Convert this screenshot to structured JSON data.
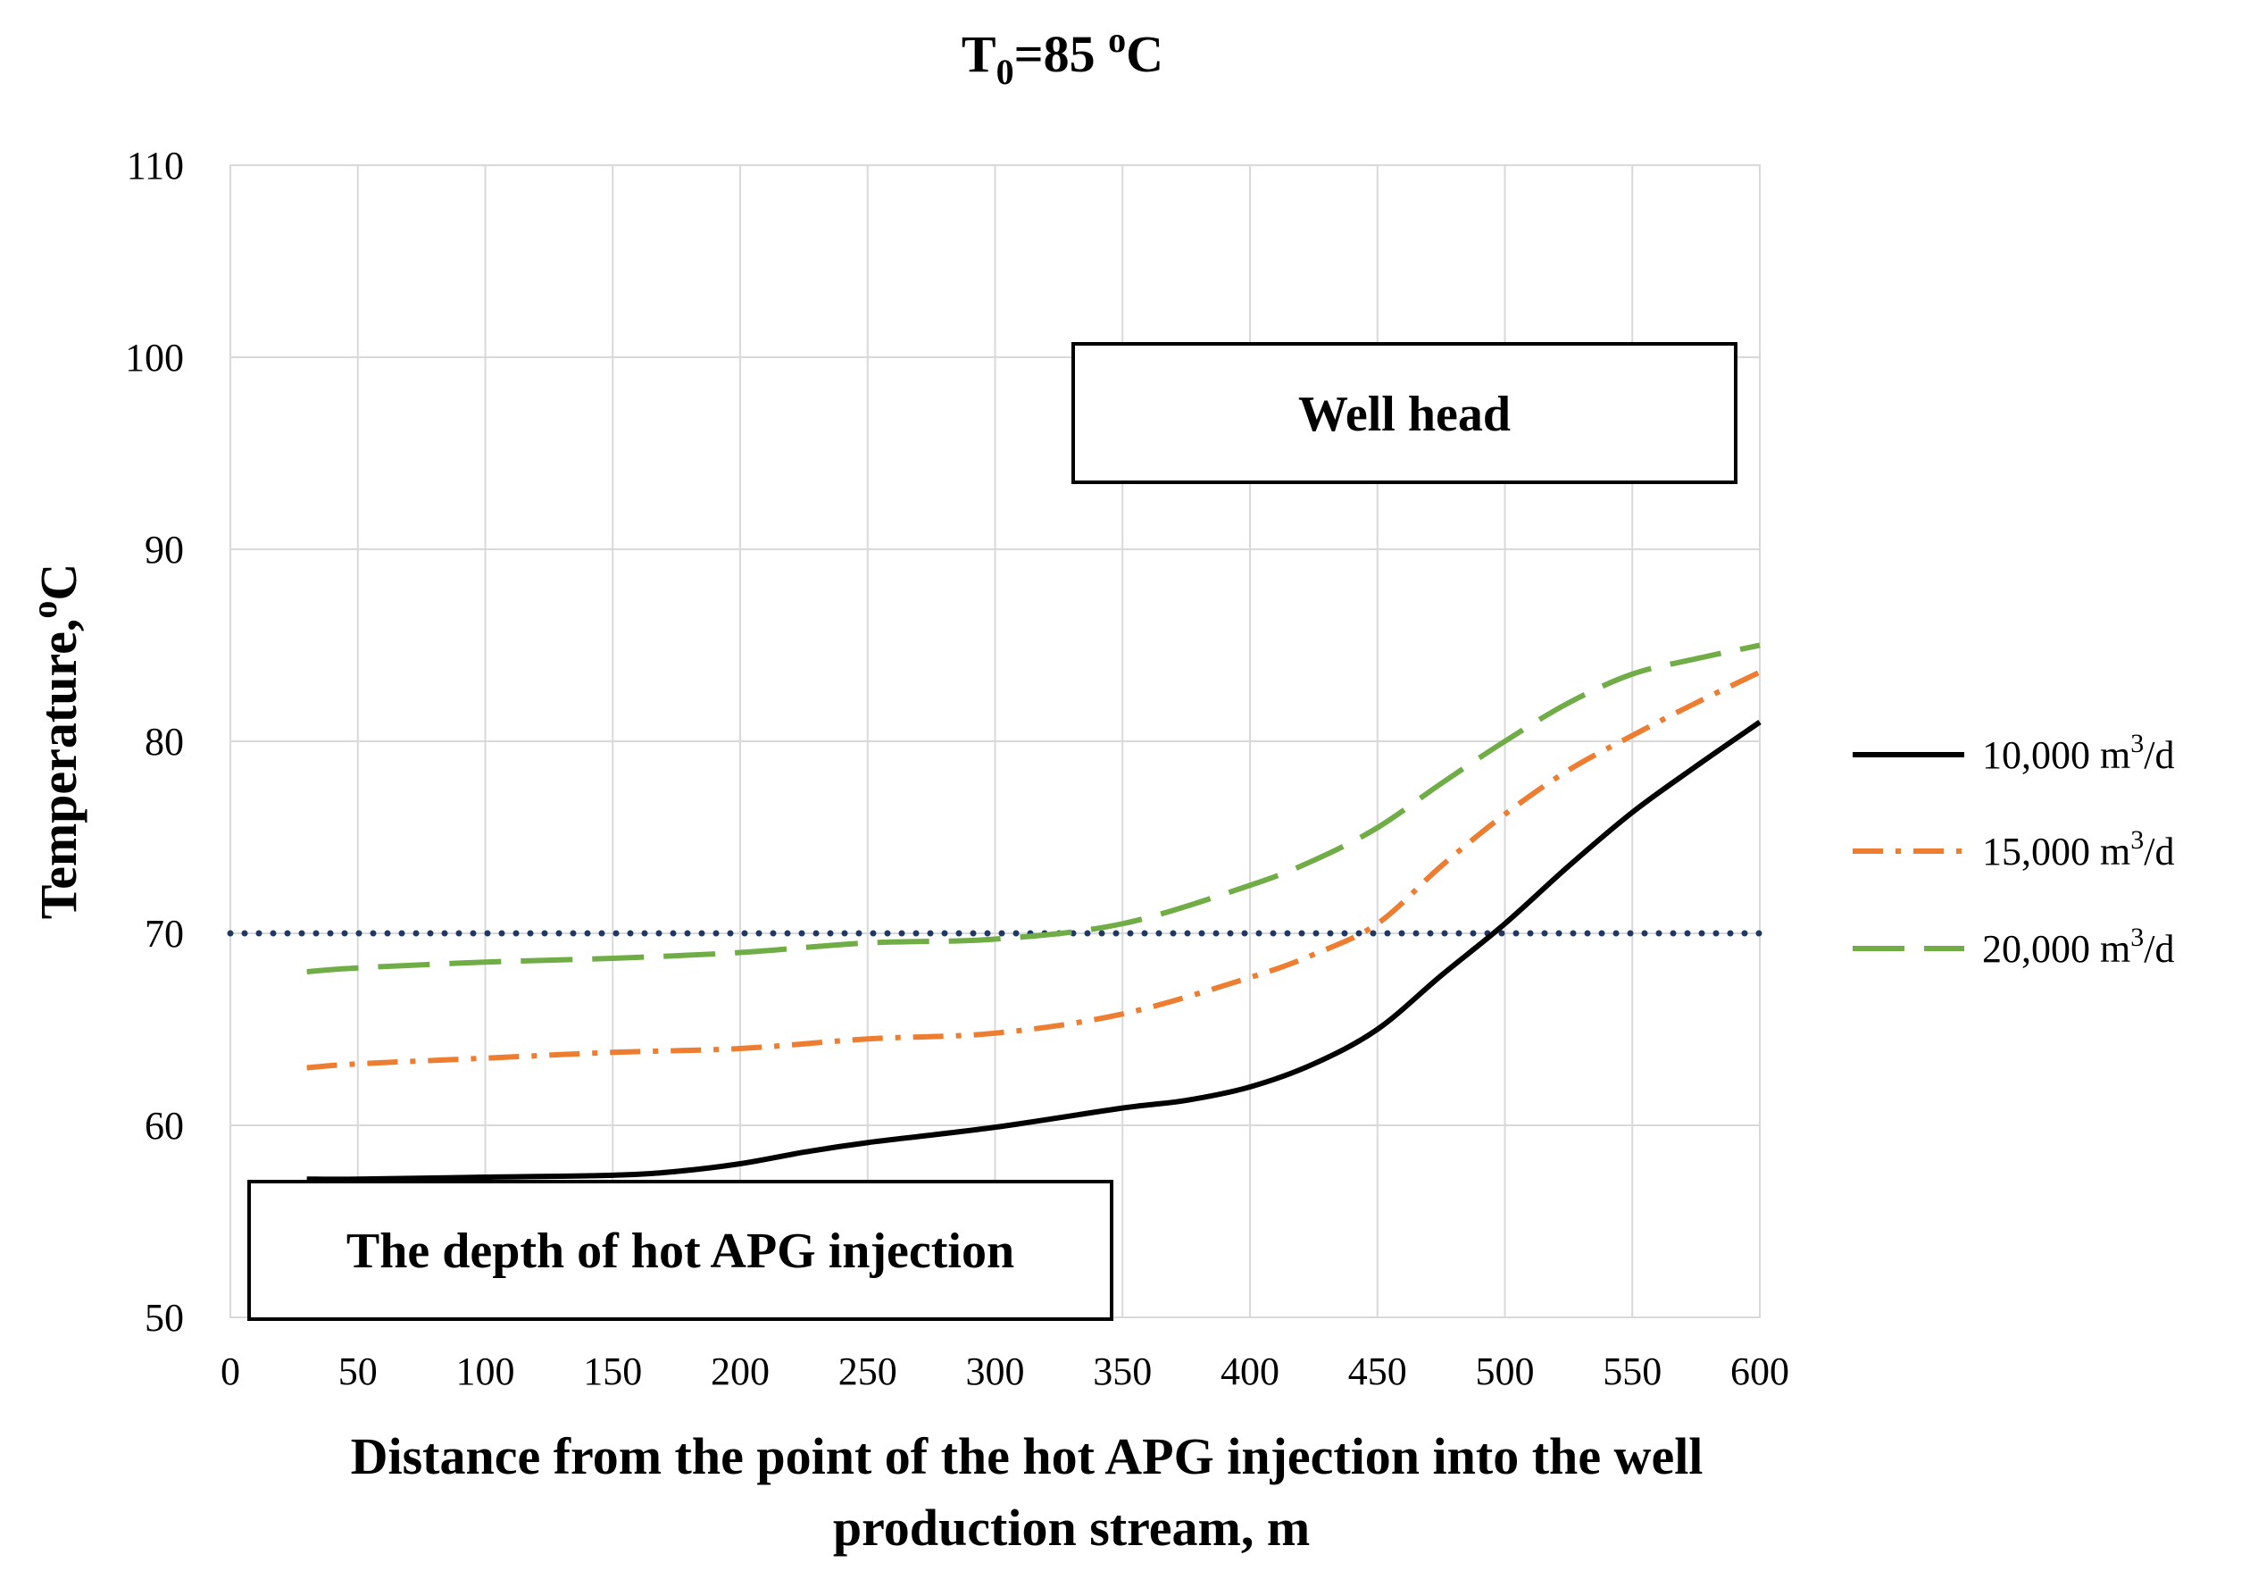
{
  "chart_data": {
    "type": "line",
    "title": {
      "base": "T",
      "sub": "0",
      "eq": "=85 ",
      "sup": "o",
      "unit": "C"
    },
    "xlabel_line1": "Distance from the point of the hot APG injection into the well",
    "xlabel_line2": "production stream, m",
    "ylabel": {
      "base": "Temperature,",
      "sup": "o",
      "unit": "C"
    },
    "xlim": [
      0,
      600
    ],
    "ylim": [
      50,
      110
    ],
    "x_ticks": [
      0,
      50,
      100,
      150,
      200,
      250,
      300,
      350,
      400,
      450,
      500,
      550,
      600
    ],
    "x_tick_labels": [
      "0",
      "50",
      "100",
      "150",
      "200",
      "250",
      "300",
      "350",
      "400",
      "450",
      "500",
      "550",
      "600"
    ],
    "y_ticks": [
      50,
      60,
      70,
      80,
      90,
      100,
      110
    ],
    "y_tick_labels": [
      "50",
      "60",
      "70",
      "80",
      "90",
      "100",
      "110"
    ],
    "grid": true,
    "legend_position": "right",
    "series": [
      {
        "name": "10,000 m³/d",
        "label_prefix": "10,000 m",
        "label_sup": "3",
        "label_suffix": "/d",
        "color": "#000000",
        "style": "solid",
        "x": [
          30,
          50,
          100,
          150,
          175,
          200,
          225,
          250,
          300,
          350,
          375,
          400,
          425,
          450,
          475,
          500,
          525,
          550,
          575,
          600
        ],
        "y": [
          57.2,
          57.2,
          57.3,
          57.4,
          57.6,
          58.0,
          58.6,
          59.1,
          59.9,
          60.9,
          61.3,
          62.0,
          63.2,
          65.0,
          67.8,
          70.5,
          73.5,
          76.3,
          78.7,
          81.0
        ]
      },
      {
        "name": "15,000 m³/d",
        "label_prefix": "15,000 m",
        "label_sup": "3",
        "label_suffix": "/d",
        "color": "#ED7D31",
        "style": "dashdot",
        "x": [
          30,
          50,
          100,
          150,
          200,
          250,
          300,
          350,
          400,
          425,
          450,
          475,
          500,
          525,
          550,
          575,
          600
        ],
        "y": [
          63.0,
          63.2,
          63.5,
          63.8,
          64.0,
          64.5,
          64.8,
          65.8,
          67.7,
          68.9,
          70.5,
          73.5,
          76.2,
          78.5,
          80.3,
          82.0,
          83.6
        ]
      },
      {
        "name": "20,000 m³/d",
        "label_prefix": "20,000 m",
        "label_sup": "3",
        "label_suffix": "/d",
        "color": "#70AD47",
        "style": "dashed",
        "x": [
          30,
          50,
          100,
          150,
          200,
          250,
          300,
          350,
          400,
          425,
          450,
          475,
          500,
          525,
          550,
          575,
          600
        ],
        "y": [
          68.0,
          68.2,
          68.5,
          68.7,
          69.0,
          69.5,
          69.7,
          70.5,
          72.5,
          73.8,
          75.5,
          77.8,
          80.0,
          82.0,
          83.5,
          84.3,
          85.0
        ]
      }
    ],
    "reference_line": {
      "y": 70,
      "color": "#1F3864",
      "style": "dotted"
    },
    "annotations": [
      {
        "text": "Well head"
      },
      {
        "text": "The depth of hot APG injection"
      }
    ]
  }
}
